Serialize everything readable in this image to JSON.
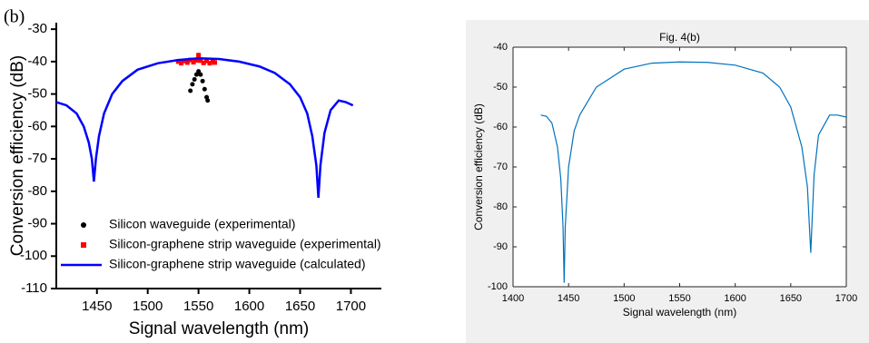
{
  "chart_data": [
    {
      "type": "line",
      "annotation": "(b)",
      "xlabel": "Signal wavelength (nm)",
      "ylabel": "Conversion efficiency (dB)",
      "xlim": [
        1410,
        1730
      ],
      "xticks": [
        1450,
        1500,
        1550,
        1600,
        1650,
        1700
      ],
      "ylim": [
        -110,
        -28
      ],
      "yticks": [
        -110,
        -100,
        -90,
        -80,
        -70,
        -60,
        -50,
        -40,
        -30
      ],
      "legend": "lower left",
      "series": [
        {
          "name": "Silicon waveguide (experimental)",
          "color": "#000000",
          "marker": "circle",
          "x": [
            1542,
            1544,
            1546,
            1548,
            1550,
            1552,
            1554,
            1556,
            1558,
            1559
          ],
          "values": [
            -49,
            -47,
            -45.5,
            -44,
            -43,
            -44,
            -46,
            -48.5,
            -51,
            -52
          ]
        },
        {
          "name": "Silicon-graphene strip waveguide (experimental)",
          "color": "#ff0000",
          "marker": "square",
          "x": [
            1530,
            1533,
            1536,
            1539,
            1542,
            1545,
            1548,
            1550,
            1552,
            1555,
            1558,
            1561,
            1564,
            1566
          ],
          "values": [
            -40,
            -40.5,
            -39.8,
            -40.3,
            -39.5,
            -40.2,
            -39.6,
            -38,
            -39.7,
            -40.4,
            -39.8,
            -40.5,
            -40,
            -40.3
          ]
        },
        {
          "name": "Silicon-graphene strip waveguide (calculated)",
          "color": "#0000ff",
          "marker": "line",
          "x": [
            1410,
            1420,
            1430,
            1437,
            1442,
            1445,
            1447,
            1449,
            1452,
            1457,
            1465,
            1475,
            1490,
            1510,
            1530,
            1550,
            1570,
            1590,
            1610,
            1625,
            1640,
            1650,
            1657,
            1662,
            1666,
            1668,
            1670,
            1674,
            1680,
            1688,
            1695,
            1702
          ],
          "values": [
            -52.5,
            -53.5,
            -56,
            -60,
            -65,
            -70,
            -77,
            -70,
            -63,
            -56,
            -50,
            -46,
            -42.5,
            -40.5,
            -39.5,
            -39,
            -39.2,
            -40,
            -41.5,
            -43.5,
            -47,
            -51,
            -56,
            -63,
            -72,
            -82,
            -72,
            -62,
            -55,
            -52,
            -52.5,
            -53.5
          ]
        }
      ]
    },
    {
      "type": "line",
      "title": "Fig. 4(b)",
      "xlabel": "Signal wavelength (nm)",
      "ylabel": "Conversion efficiency (dB)",
      "xlim": [
        1400,
        1700
      ],
      "xticks": [
        1400,
        1450,
        1500,
        1550,
        1600,
        1650,
        1700
      ],
      "ylim": [
        -100,
        -40
      ],
      "yticks": [
        -100,
        -90,
        -80,
        -70,
        -60,
        -50,
        -40
      ],
      "series": [
        {
          "color": "#0072bd",
          "x": [
            1425,
            1430,
            1435,
            1440,
            1443,
            1445,
            1446,
            1447,
            1450,
            1455,
            1460,
            1475,
            1500,
            1525,
            1550,
            1575,
            1600,
            1625,
            1640,
            1650,
            1660,
            1665,
            1668,
            1671,
            1675,
            1685,
            1692,
            1700
          ],
          "values": [
            -57,
            -57.3,
            -59,
            -65,
            -73,
            -85,
            -99,
            -85,
            -70,
            -61,
            -57,
            -50,
            -45.5,
            -44,
            -43.7,
            -43.8,
            -44.5,
            -46.5,
            -50,
            -55,
            -65,
            -75,
            -91.5,
            -72,
            -62,
            -57,
            -57,
            -57.5
          ]
        }
      ]
    }
  ]
}
